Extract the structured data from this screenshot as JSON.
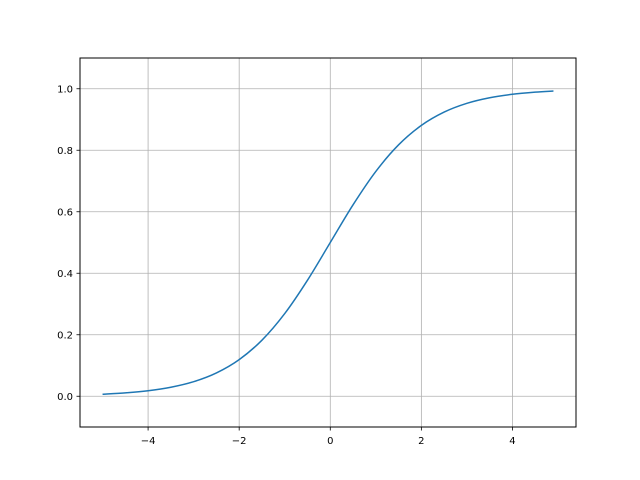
{
  "chart_data": {
    "type": "line",
    "title": "",
    "xlabel": "",
    "ylabel": "",
    "xlim": [
      -5.495,
      5.395
    ],
    "ylim": [
      -0.1,
      1.1
    ],
    "grid": true,
    "x_ticks": [
      -4,
      -2,
      0,
      2,
      4
    ],
    "x_tick_labels": [
      "−4",
      "−2",
      "0",
      "2",
      "4"
    ],
    "y_ticks": [
      0.0,
      0.2,
      0.4,
      0.6,
      0.8,
      1.0
    ],
    "y_tick_labels": [
      "0.0",
      "0.2",
      "0.4",
      "0.6",
      "0.8",
      "1.0"
    ],
    "series": [
      {
        "color": "#1f77b4",
        "x": [
          -5,
          -4.5,
          -4,
          -3.5,
          -3,
          -2.5,
          -2,
          -1.5,
          -1,
          -0.5,
          0,
          0.5,
          1,
          1.5,
          2,
          2.5,
          3,
          3.5,
          4,
          4.5,
          4.9
        ],
        "y": [
          0.0067,
          0.011,
          0.018,
          0.0293,
          0.0474,
          0.0759,
          0.1192,
          0.1824,
          0.2689,
          0.3775,
          0.5,
          0.6225,
          0.7311,
          0.8176,
          0.8808,
          0.9241,
          0.9526,
          0.9707,
          0.982,
          0.989,
          0.9926
        ]
      }
    ],
    "grid_color": "#b0b0b0"
  }
}
